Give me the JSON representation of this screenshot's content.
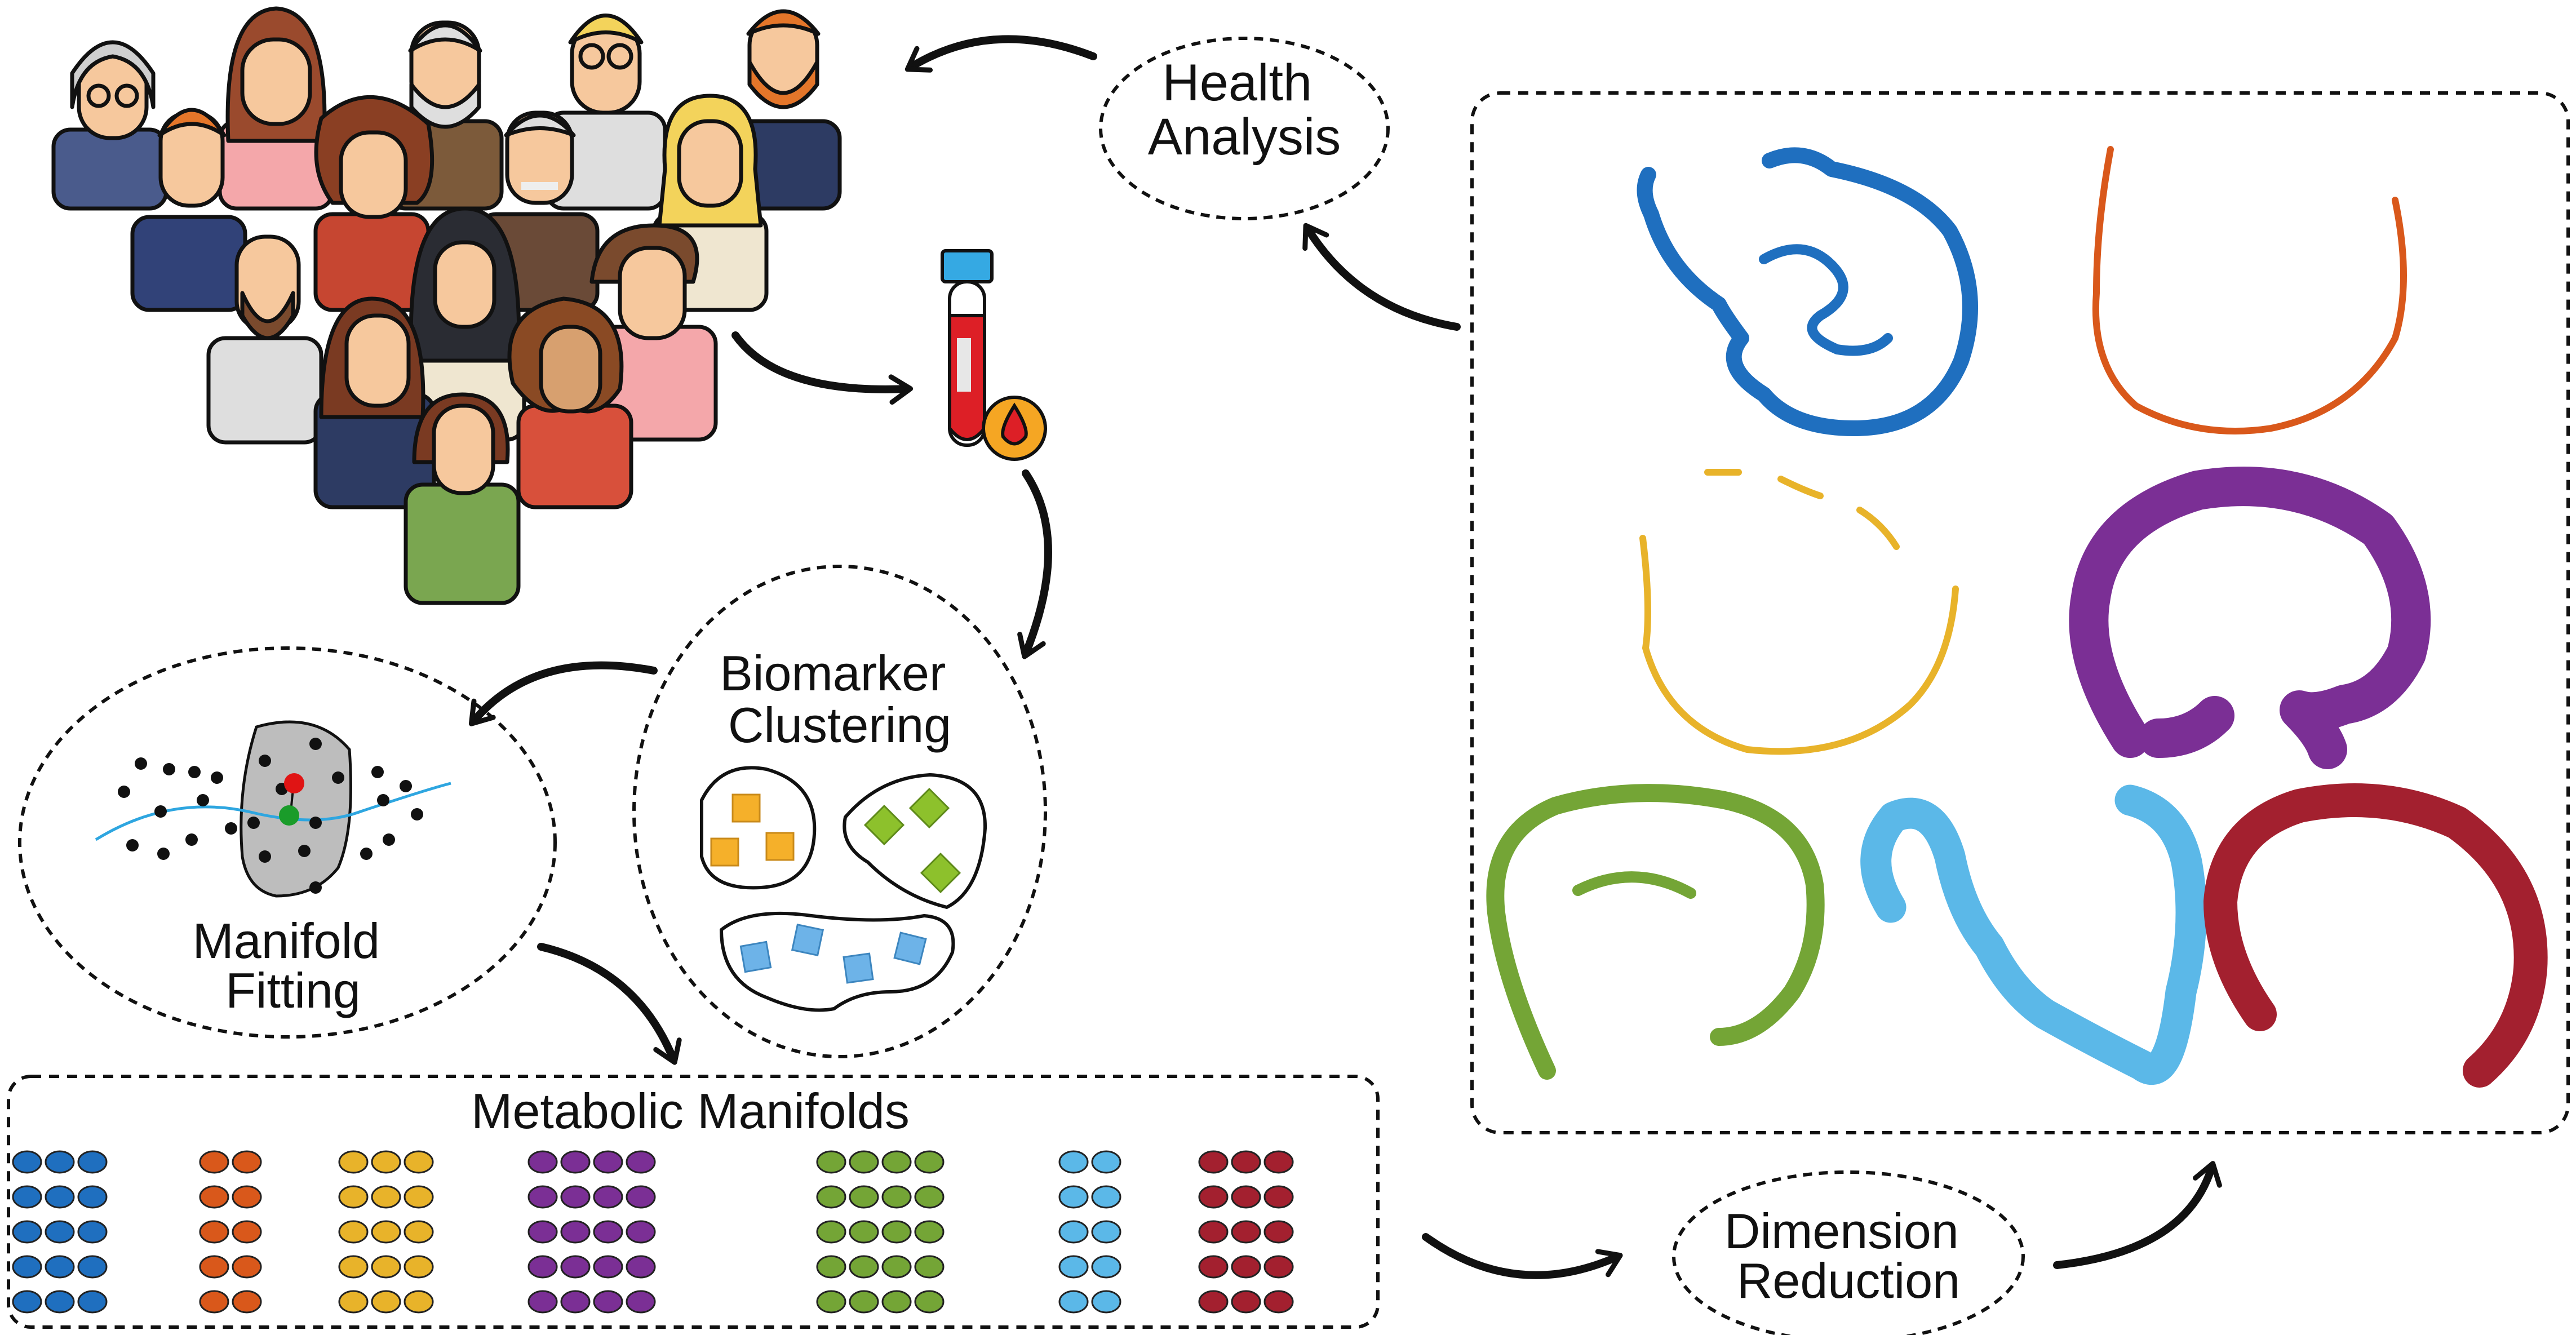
{
  "labels": {
    "health_analysis": [
      "Health",
      "Analysis"
    ],
    "biomarker_clustering": [
      "Biomarker",
      "Clustering"
    ],
    "manifold_fitting": [
      "Manifold",
      "Fitting"
    ],
    "metabolic_manifolds": "Metabolic Manifolds",
    "dimension_reduction": [
      "Dimension",
      "Reduction"
    ]
  },
  "colors": {
    "blue": "#1f6fbf",
    "orange": "#d9581b",
    "yellow": "#e8b32a",
    "purple": "#7b2f95",
    "green": "#74a536",
    "light_blue": "#5bb8e8",
    "crimson": "#a3202f",
    "ink": "#111111",
    "cluster_orange": "#f5b02a",
    "cluster_green": "#8dc12c",
    "cluster_blue": "#6db3e8",
    "red_point": "#e01414",
    "green_point": "#1a9c2a",
    "fit_curve": "#2ea6e0",
    "blood_tube_cap": "#35a9e3",
    "blood_red": "#dd1f26"
  },
  "icons": {
    "people_group": "people-crowd-icon",
    "blood_sample": "blood-test-tube-icon",
    "blood_drop": "blood-drop-icon"
  },
  "metabolic_manifolds": {
    "groups": [
      {
        "color": "blue",
        "columns": 3,
        "rows": 5
      },
      {
        "color": "orange",
        "columns": 2,
        "rows": 5
      },
      {
        "color": "yellow",
        "columns": 3,
        "rows": 5
      },
      {
        "color": "purple",
        "columns": 4,
        "rows": 5
      },
      {
        "color": "green",
        "columns": 4,
        "rows": 5
      },
      {
        "color": "light_blue",
        "columns": 2,
        "rows": 5
      },
      {
        "color": "crimson",
        "columns": 3,
        "rows": 5
      }
    ]
  },
  "manifold_shapes": [
    "blue",
    "orange",
    "yellow",
    "purple",
    "green",
    "light_blue",
    "crimson"
  ]
}
